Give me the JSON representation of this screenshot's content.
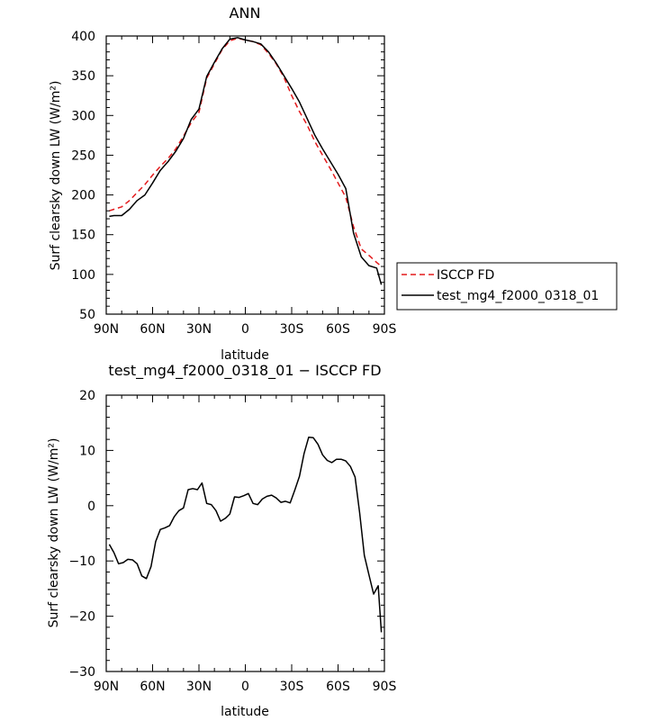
{
  "chart_data": [
    {
      "type": "line",
      "title": "ANN",
      "xlabel": "latitude",
      "ylabel": "Surf clearsky down LW (W/m²)",
      "xlim": [
        90,
        -90
      ],
      "ylim": [
        50,
        400
      ],
      "x_tick_values": [
        90,
        60,
        30,
        0,
        -30,
        -60,
        -90
      ],
      "x_tick_labels": [
        "90N",
        "60N",
        "30N",
        "0",
        "30S",
        "60S",
        "90S"
      ],
      "y_ticks": [
        50,
        100,
        150,
        200,
        250,
        300,
        350,
        400
      ],
      "legend": {
        "placement": "right",
        "entries": [
          "ISCCP FD",
          "test_mg4_f2000_0318_01"
        ]
      },
      "series": [
        {
          "name": "ISCCP FD",
          "color": "#e31a1c",
          "dash": "dashed",
          "x": [
            88,
            85,
            80,
            75,
            70,
            65,
            60,
            55,
            50,
            45,
            40,
            35,
            30,
            25,
            20,
            15,
            10,
            5,
            0,
            -5,
            -10,
            -15,
            -20,
            -25,
            -30,
            -35,
            -40,
            -45,
            -50,
            -55,
            -60,
            -65,
            -70,
            -75,
            -80,
            -85,
            -88
          ],
          "y": [
            180,
            182,
            185,
            193,
            203,
            213,
            225,
            236,
            246,
            258,
            274,
            291,
            304,
            347,
            365,
            383,
            394,
            397,
            395,
            393,
            389,
            378,
            365,
            348,
            325,
            305,
            288,
            267,
            250,
            233,
            215,
            197,
            160,
            132,
            124,
            115,
            110
          ]
        },
        {
          "name": "test_mg4_f2000_0318_01",
          "color": "#000000",
          "dash": "solid",
          "x": [
            88,
            85,
            80,
            75,
            70,
            65,
            60,
            55,
            50,
            45,
            40,
            35,
            30,
            25,
            20,
            15,
            10,
            5,
            0,
            -5,
            -10,
            -15,
            -20,
            -25,
            -30,
            -35,
            -40,
            -45,
            -50,
            -55,
            -60,
            -65,
            -70,
            -75,
            -80,
            -85,
            -88
          ],
          "y": [
            173,
            174,
            174,
            182,
            193,
            200,
            215,
            231,
            242,
            255,
            271,
            295,
            308,
            349,
            367,
            384,
            396,
            398,
            395,
            393,
            390,
            380,
            366,
            350,
            334,
            317,
            296,
            275,
            258,
            242,
            226,
            208,
            152,
            122,
            111,
            108,
            87
          ]
        }
      ]
    },
    {
      "type": "line",
      "title": "test_mg4_f2000_0318_01 − ISCCP FD",
      "xlabel": "latitude",
      "ylabel": "Surf clearsky down LW (W/m²)",
      "xlim": [
        90,
        -90
      ],
      "ylim": [
        -30,
        20
      ],
      "x_tick_values": [
        90,
        60,
        30,
        0,
        -30,
        -60,
        -90
      ],
      "x_tick_labels": [
        "90N",
        "60N",
        "30N",
        "0",
        "30S",
        "60S",
        "90S"
      ],
      "y_ticks": [
        -30,
        -20,
        -10,
        0,
        10,
        20
      ],
      "series": [
        {
          "color": "#000000",
          "dash": "solid",
          "x": [
            88,
            85,
            82,
            79,
            76,
            73,
            70,
            67,
            64,
            61,
            58,
            55,
            52,
            49,
            46,
            43,
            40,
            37,
            34,
            31,
            28,
            25,
            22,
            19,
            16,
            13,
            10,
            7,
            4,
            1,
            -2,
            -5,
            -8,
            -11,
            -14,
            -17,
            -20,
            -23,
            -26,
            -29,
            -32,
            -35,
            -38,
            -41,
            -44,
            -47,
            -50,
            -53,
            -56,
            -59,
            -62,
            -65,
            -68,
            -71,
            -74,
            -77,
            -80,
            -83,
            -86,
            -88
          ],
          "y": [
            -7,
            -8.5,
            -10.5,
            -10.3,
            -9.7,
            -9.8,
            -10.5,
            -12.7,
            -13.2,
            -11,
            -6.5,
            -4.3,
            -4,
            -3.6,
            -2,
            -0.9,
            -0.4,
            2.9,
            3.1,
            2.9,
            4.1,
            0.4,
            0.2,
            -0.9,
            -2.8,
            -2.3,
            -1.5,
            1.6,
            1.5,
            1.8,
            2.2,
            0.4,
            0.2,
            1.2,
            1.7,
            1.9,
            1.4,
            0.6,
            0.8,
            0.5,
            2.8,
            5.3,
            9.4,
            12.4,
            12.3,
            11.1,
            9.2,
            8.2,
            7.8,
            8.4,
            8.4,
            8.1,
            7.1,
            5.2,
            -1.3,
            -9,
            -12.5,
            -16,
            -14.5,
            -22.9
          ]
        }
      ]
    }
  ]
}
